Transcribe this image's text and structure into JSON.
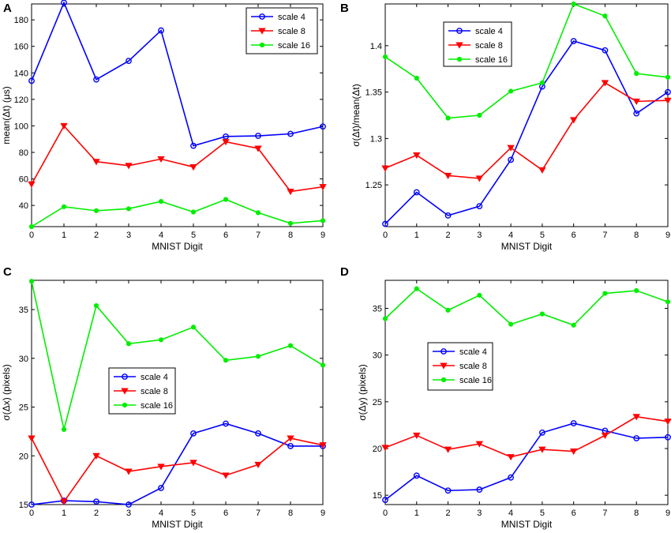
{
  "figure": {
    "series_colors": {
      "scale 4": "#0000ff",
      "scale 8": "#ff0000",
      "scale 16": "#00ee00"
    }
  },
  "chart_data": [
    {
      "panel": "A",
      "type": "line",
      "xlabel": "MNIST Digit",
      "ylabel": "mean(Δt) (μs)",
      "x": [
        0,
        1,
        2,
        3,
        4,
        5,
        6,
        7,
        8,
        9
      ],
      "xlim": [
        0,
        9
      ],
      "ylim": [
        24,
        192
      ],
      "xticks": [
        0,
        1,
        2,
        3,
        4,
        5,
        6,
        7,
        8,
        9
      ],
      "yticks": [
        40,
        60,
        80,
        100,
        120,
        140,
        160,
        180
      ],
      "legend_position": "top-right",
      "series": [
        {
          "name": "scale 4",
          "marker": "circle",
          "color": "#0000ff",
          "values": [
            134,
            193,
            135,
            149,
            172,
            85,
            92,
            92.5,
            94,
            99.5
          ]
        },
        {
          "name": "scale 8",
          "marker": "triangle-down",
          "color": "#ff0000",
          "values": [
            56,
            100,
            73,
            70,
            75,
            69,
            88,
            83,
            50.5,
            54
          ]
        },
        {
          "name": "scale 16",
          "marker": "dot",
          "color": "#00ee00",
          "values": [
            24,
            39,
            36,
            37.5,
            43,
            35,
            44.5,
            34.5,
            26.5,
            28.5
          ]
        }
      ]
    },
    {
      "panel": "B",
      "type": "line",
      "xlabel": "MNIST Digit",
      "ylabel": "σ(Δt)/mean(Δt)",
      "x": [
        0,
        1,
        2,
        3,
        4,
        5,
        6,
        7,
        8,
        9
      ],
      "xlim": [
        0,
        9
      ],
      "ylim": [
        1.205,
        1.445
      ],
      "xticks": [
        0,
        1,
        2,
        3,
        4,
        5,
        6,
        7,
        8,
        9
      ],
      "yticks": [
        1.25,
        1.3,
        1.35,
        1.4
      ],
      "legend_position": "top-left",
      "series": [
        {
          "name": "scale 4",
          "marker": "circle",
          "color": "#0000ff",
          "values": [
            1.208,
            1.242,
            1.217,
            1.227,
            1.277,
            1.356,
            1.405,
            1.395,
            1.327,
            1.35
          ]
        },
        {
          "name": "scale 8",
          "marker": "triangle-down",
          "color": "#ff0000",
          "values": [
            1.268,
            1.282,
            1.26,
            1.257,
            1.29,
            1.266,
            1.32,
            1.36,
            1.34,
            1.341
          ]
        },
        {
          "name": "scale 16",
          "marker": "dot",
          "color": "#00ee00",
          "values": [
            1.388,
            1.365,
            1.322,
            1.325,
            1.351,
            1.36,
            1.445,
            1.432,
            1.37,
            1.366
          ]
        }
      ]
    },
    {
      "panel": "C",
      "type": "line",
      "xlabel": "MNIST Digit",
      "ylabel": "σ(Δx) (pixels)",
      "x": [
        0,
        1,
        2,
        3,
        4,
        5,
        6,
        7,
        8,
        9
      ],
      "xlim": [
        0,
        9
      ],
      "ylim": [
        15,
        38
      ],
      "xticks": [
        0,
        1,
        2,
        3,
        4,
        5,
        6,
        7,
        8,
        9
      ],
      "yticks": [
        15,
        20,
        25,
        30,
        35
      ],
      "legend_position": "center-left",
      "series": [
        {
          "name": "scale 4",
          "marker": "circle",
          "color": "#0000ff",
          "values": [
            15,
            15.4,
            15.3,
            15,
            16.7,
            22.3,
            23.3,
            22.3,
            21,
            21
          ]
        },
        {
          "name": "scale 8",
          "marker": "triangle-down",
          "color": "#ff0000",
          "values": [
            21.8,
            15.3,
            20,
            18.4,
            18.9,
            19.3,
            18,
            19.1,
            21.8,
            21.1
          ]
        },
        {
          "name": "scale 16",
          "marker": "dot",
          "color": "#00ee00",
          "values": [
            37.9,
            22.7,
            35.4,
            31.5,
            31.9,
            33.2,
            29.8,
            30.2,
            31.3,
            29.3
          ]
        }
      ]
    },
    {
      "panel": "D",
      "type": "line",
      "xlabel": "MNIST Digit",
      "ylabel": "σ(Δy) (pixels)",
      "x": [
        0,
        1,
        2,
        3,
        4,
        5,
        6,
        7,
        8,
        9
      ],
      "xlim": [
        0,
        9
      ],
      "ylim": [
        14,
        38
      ],
      "xticks": [
        0,
        1,
        2,
        3,
        4,
        5,
        6,
        7,
        8,
        9
      ],
      "yticks": [
        15,
        20,
        25,
        30,
        35
      ],
      "legend_position": "center-left",
      "series": [
        {
          "name": "scale 4",
          "marker": "circle",
          "color": "#0000ff",
          "values": [
            14.5,
            17.1,
            15.5,
            15.6,
            16.9,
            21.7,
            22.7,
            21.9,
            21.1,
            21.2
          ]
        },
        {
          "name": "scale 8",
          "marker": "triangle-down",
          "color": "#ff0000",
          "values": [
            20.1,
            21.4,
            19.9,
            20.5,
            19.1,
            19.9,
            19.7,
            21.4,
            23.4,
            22.9
          ]
        },
        {
          "name": "scale 16",
          "marker": "dot",
          "color": "#00ee00",
          "values": [
            33.9,
            37.1,
            34.8,
            36.4,
            33.3,
            34.4,
            33.2,
            36.6,
            36.9,
            35.7
          ]
        }
      ]
    }
  ]
}
